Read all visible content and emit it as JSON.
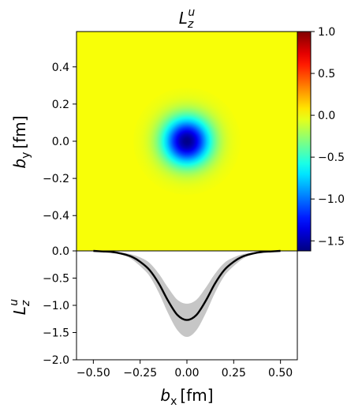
{
  "chart_data": [
    {
      "type": "heatmap",
      "title": "L_z^u",
      "title_main": "L",
      "title_sub": "z",
      "title_sup": "u",
      "ylabel": "b_y [fm]",
      "ylabel_main": "b",
      "ylabel_sub": "y",
      "ylabel_unit": "[fm]",
      "xlim": [
        -0.59,
        0.59
      ],
      "ylim": [
        0.0,
        0.59
      ],
      "yticks": [
        "0.0",
        "0.2",
        "0.4"
      ],
      "yticks_neg": [
        "−0.4",
        "−0.2"
      ],
      "ytick_labels": [
        "−0.4",
        "−0.2",
        "0.0",
        "0.2",
        "0.4"
      ],
      "ytick_values": [
        -0.4,
        -0.2,
        0.0,
        0.2,
        0.4
      ],
      "colorbar": {
        "colormap": "jet",
        "range": [
          -1.62,
          1.0
        ],
        "tick_labels": [
          "1.0",
          "0.5",
          "0.0",
          "−0.5",
          "−1.0",
          "−1.5"
        ],
        "tick_values": [
          1.0,
          0.5,
          0.0,
          -0.5,
          -1.0,
          -1.5
        ]
      },
      "distribution": {
        "center": [
          0.0,
          0.0
        ],
        "peak_value": -1.6,
        "background_value": 0.0,
        "width_fm": 0.13
      }
    },
    {
      "type": "line",
      "xlabel": "b_x [fm]",
      "xlabel_main": "b",
      "xlabel_sub": "x",
      "xlabel_unit": "[fm]",
      "ylabel": "L_z^u",
      "ylabel_main": "L",
      "ylabel_sub": "z",
      "ylabel_sup": "u",
      "xlim": [
        -0.59,
        0.59
      ],
      "ylim": [
        -2.0,
        0.0
      ],
      "xtick_labels": [
        "−0.50",
        "−0.25",
        "0.00",
        "0.25",
        "0.50"
      ],
      "xtick_values": [
        -0.5,
        -0.25,
        0.0,
        0.25,
        0.5
      ],
      "ytick_labels": [
        "0.0",
        "−0.5",
        "−1.0",
        "−1.5",
        "−2.0"
      ],
      "ytick_values": [
        0.0,
        -0.5,
        -1.0,
        -1.5,
        -2.0
      ],
      "series": [
        {
          "x": [
            -0.5,
            -0.45,
            -0.4,
            -0.35,
            -0.3,
            -0.25,
            -0.2,
            -0.15,
            -0.1,
            -0.05,
            0.0,
            0.05,
            0.1,
            0.15,
            0.2,
            0.25,
            0.3,
            0.35,
            0.4,
            0.45,
            0.5
          ],
          "y": [
            0.0,
            -0.01,
            -0.02,
            -0.05,
            -0.1,
            -0.2,
            -0.35,
            -0.6,
            -0.92,
            -1.18,
            -1.27,
            -1.18,
            -0.92,
            -0.6,
            -0.35,
            -0.2,
            -0.1,
            -0.05,
            -0.02,
            -0.01,
            0.0
          ],
          "lower": [
            0.0,
            -0.01,
            -0.03,
            -0.07,
            -0.14,
            -0.28,
            -0.46,
            -0.77,
            -1.15,
            -1.46,
            -1.58,
            -1.46,
            -1.15,
            -0.77,
            -0.46,
            -0.28,
            -0.14,
            -0.07,
            -0.03,
            -0.01,
            0.0
          ],
          "upper": [
            0.0,
            0.0,
            -0.01,
            -0.03,
            -0.06,
            -0.12,
            -0.22,
            -0.42,
            -0.68,
            -0.9,
            -0.97,
            -0.9,
            -0.68,
            -0.42,
            -0.22,
            -0.12,
            -0.06,
            -0.03,
            -0.01,
            0.0,
            0.0
          ]
        }
      ]
    }
  ]
}
